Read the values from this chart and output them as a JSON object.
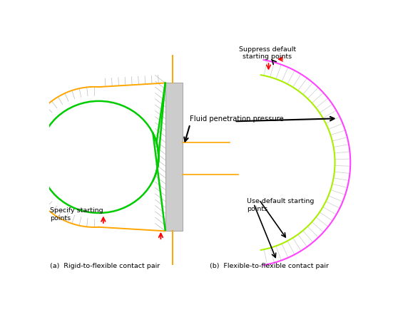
{
  "fig_width": 5.51,
  "fig_height": 4.38,
  "dpi": 100,
  "bg_color": "#ffffff",
  "label_a": "(a)  Rigid-to-flexible contact pair",
  "label_b": "(b)  Flexible-to-flexible contact pair",
  "annotation_fluid": "Fluid penetration pressure",
  "annotation_suppress": "Suppress default\nstarting points",
  "annotation_specify": "Specify starting\npoints",
  "annotation_default": "Use default starting\npoints",
  "orange_color": "#FFA500",
  "green_color": "#00CC00",
  "gray_color": "#AAAAAA",
  "red_color": "#FF0000",
  "magenta_color": "#FF44FF",
  "yellow_green_color": "#AAEE00",
  "black_color": "#000000",
  "hatch_gray": "#BBBBBB",
  "wall_gray": "#CCCCCC",
  "wall_edge": "#999999"
}
